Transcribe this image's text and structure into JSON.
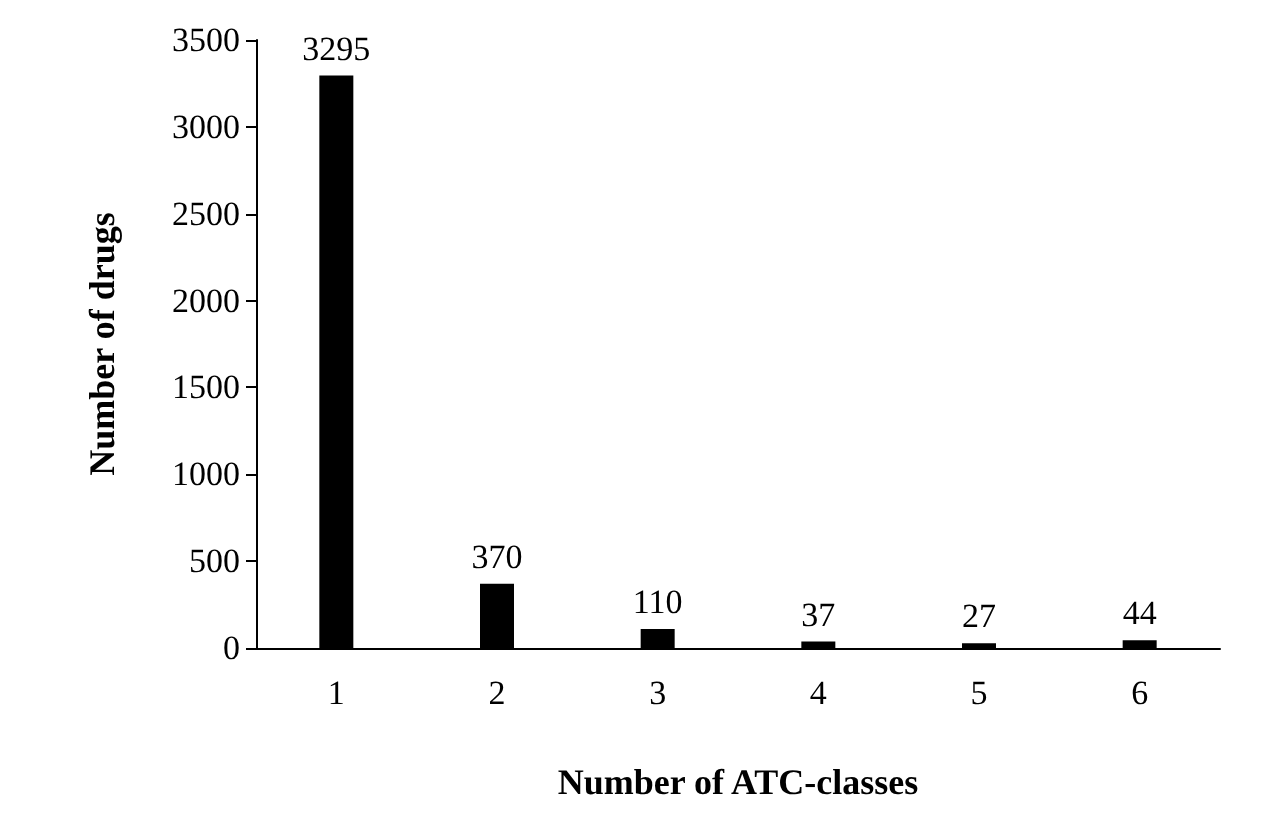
{
  "chart_data": {
    "type": "bar",
    "xlabel": "Number of ATC-classes",
    "ylabel": "Number of drugs",
    "categories": [
      "1",
      "2",
      "3",
      "4",
      "5",
      "6"
    ],
    "values": [
      3295,
      370,
      110,
      37,
      27,
      44
    ],
    "color": "#000000",
    "ylim": [
      0,
      3500
    ],
    "yticks": [
      0,
      500,
      1000,
      1500,
      2000,
      2500,
      3000,
      3500
    ],
    "grid": false,
    "data_labels": true
  }
}
